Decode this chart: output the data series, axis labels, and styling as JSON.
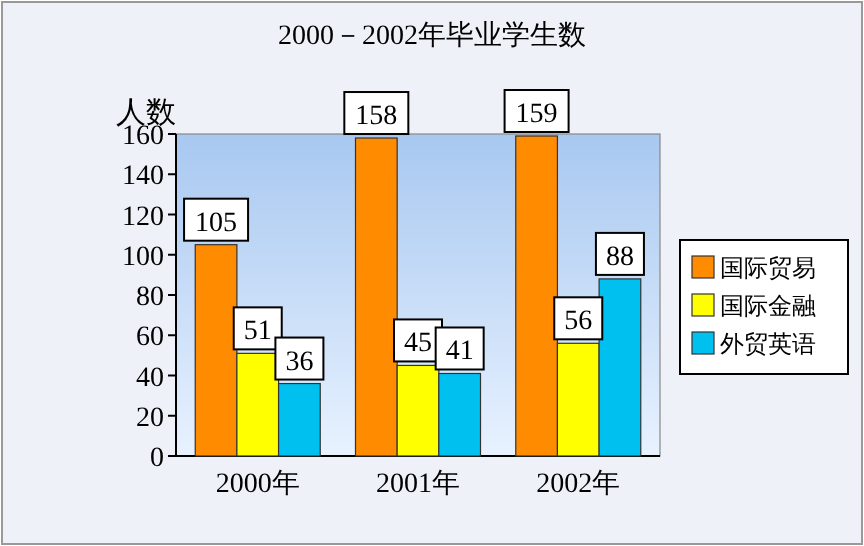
{
  "chart_data": {
    "type": "bar",
    "title": "2000－2002年毕业学生数",
    "ylabel": "人数",
    "categories": [
      "2000年",
      "2001年",
      "2002年"
    ],
    "series": [
      {
        "name": "国际贸易",
        "color": "#ff8c00",
        "values": [
          105,
          158,
          159
        ]
      },
      {
        "name": "国际金融",
        "color": "#ffff00",
        "values": [
          51,
          45,
          56
        ]
      },
      {
        "name": "外贸英语",
        "color": "#00c0f0",
        "values": [
          36,
          41,
          88
        ]
      }
    ],
    "ylim": [
      0,
      160
    ],
    "yticks": [
      0,
      20,
      40,
      60,
      80,
      100,
      120,
      140,
      160
    ],
    "legend": "right",
    "data_labels": true
  }
}
